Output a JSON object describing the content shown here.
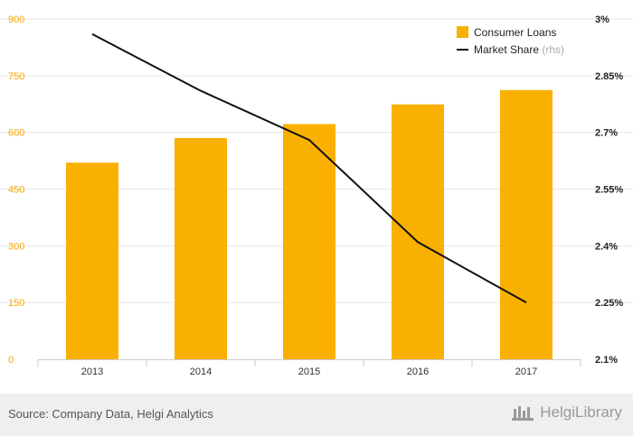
{
  "chart_data": {
    "type": "bar+line",
    "categories": [
      "2013",
      "2014",
      "2015",
      "2016",
      "2017"
    ],
    "series": [
      {
        "name": "Consumer Loans",
        "type": "bar",
        "axis": "left",
        "values": [
          520,
          585,
          622,
          674,
          712
        ],
        "color": "#f9b000"
      },
      {
        "name": "Market Share",
        "name_suffix": "(rhs)",
        "type": "line",
        "axis": "right",
        "values": [
          2.96,
          2.81,
          2.68,
          2.41,
          2.25
        ],
        "color": "#111111"
      }
    ],
    "y_left": {
      "min": 0,
      "max": 900,
      "ticks": [
        "0",
        "150",
        "300",
        "450",
        "600",
        "750",
        "900"
      ]
    },
    "y_right": {
      "min": 2.1,
      "max": 3.0,
      "ticks": [
        "2.1%",
        "2.25%",
        "2.4%",
        "2.55%",
        "2.7%",
        "2.85%",
        "3%"
      ]
    },
    "grid": true,
    "legend_position": "top-right"
  },
  "footer": {
    "source": "Source: Company Data, Helgi Analytics",
    "brand": "HelgiLibrary"
  }
}
